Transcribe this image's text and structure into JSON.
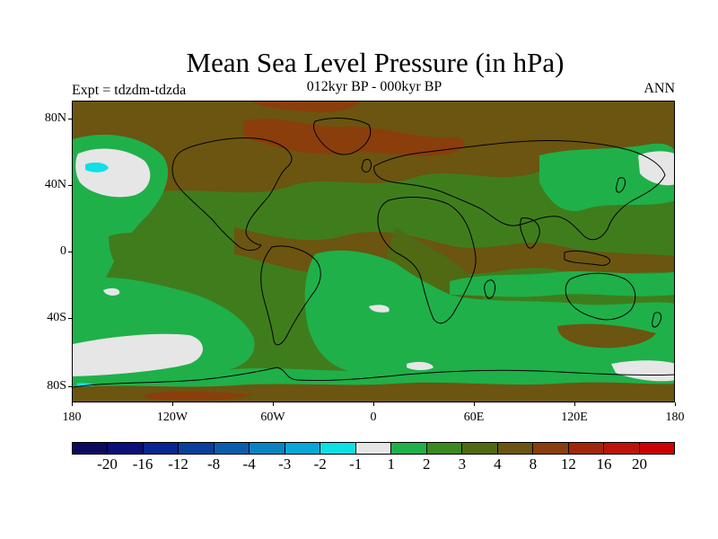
{
  "title": "Mean Sea Level Pressure (in hPa)",
  "subtitle": "012kyr BP - 000kyr BP",
  "left_label": "Expt = tdzdm-tdzda",
  "right_label": "ANN",
  "y_axis_labels": [
    "80N",
    "40N",
    "0",
    "40S",
    "80S"
  ],
  "x_axis_labels": [
    "180",
    "120W",
    "60W",
    "0",
    "60E",
    "120E",
    "180"
  ],
  "colorbar": {
    "labels": [
      "-20",
      "-16",
      "-12",
      "-8",
      "-4",
      "-3",
      "-2",
      "-1",
      "1",
      "2",
      "3",
      "4",
      "8",
      "12",
      "16",
      "20"
    ],
    "colors": [
      "#0d0a5e",
      "#0a0f7a",
      "#0a2690",
      "#0b3f9e",
      "#0c5cae",
      "#0b83c3",
      "#0aa6d6",
      "#0ee0e6",
      "#e6e6e6",
      "#1fb04a",
      "#3a8a1e",
      "#4f6a12",
      "#6b5510",
      "#8a3e0c",
      "#a02808",
      "#bc1408",
      "#cc0000"
    ]
  },
  "map_colors": {
    "coastline": "#000000",
    "ocean_low": "#1fb04a",
    "mid": "#3f7d1c",
    "olive": "#4f6a12",
    "brown": "#6b5510",
    "dark_brown": "#8a3e0c",
    "near_zero": "#e6e6e6",
    "negative": "#0ee0e6"
  }
}
